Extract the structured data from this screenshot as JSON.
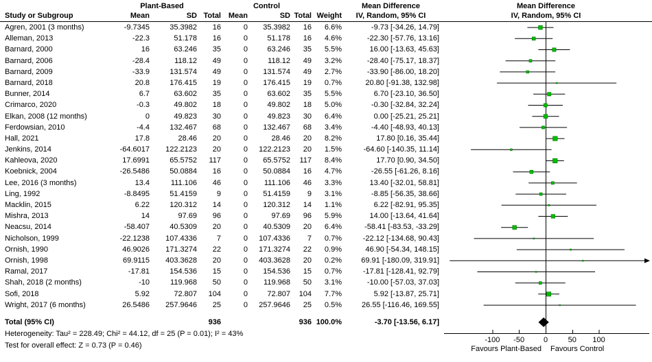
{
  "table": {
    "group_plant": "Plant-Based",
    "group_control": "Control",
    "md_header_text": "Mean Difference",
    "md_header_plot": "Mean Difference",
    "columns": [
      "Study or Subgroup",
      "Mean",
      "SD",
      "Total",
      "Mean",
      "SD",
      "Total",
      "Weight",
      "IV, Random, 95% CI"
    ],
    "plot_subheader": "IV, Random, 95% CI"
  },
  "chart_data": {
    "type": "forest",
    "effect_measure": "Mean Difference, IV, Random, 95% CI",
    "axis": {
      "ticks": [
        -100,
        -50,
        0,
        50,
        100
      ],
      "display_range": [
        -185,
        195
      ],
      "zero_line": 0
    },
    "favours_left": "Favours Plant-Based",
    "favours_right": "Favours Control",
    "marker_color": "#00bd00",
    "marker_border": "#006600",
    "line_color": "#000000",
    "diamond_color": "#000000",
    "studies": [
      {
        "name": "Agren, 2001 (3 months)",
        "pb_mean": "-9.7345",
        "pb_sd": "35.3982",
        "pb_total": "16",
        "c_mean": "0",
        "c_sd": "35.3982",
        "c_total": "16",
        "weight": "6.6%",
        "ci": "-9.73 [-34.26, 14.79]",
        "md": -9.73,
        "lo": -34.26,
        "hi": 14.79
      },
      {
        "name": "Alleman, 2013",
        "pb_mean": "-22.3",
        "pb_sd": "51.178",
        "pb_total": "16",
        "c_mean": "0",
        "c_sd": "51.178",
        "c_total": "16",
        "weight": "4.6%",
        "ci": "-22.30 [-57.76, 13.16]",
        "md": -22.3,
        "lo": -57.76,
        "hi": 13.16
      },
      {
        "name": "Barnard, 2000",
        "pb_mean": "16",
        "pb_sd": "63.246",
        "pb_total": "35",
        "c_mean": "0",
        "c_sd": "63.246",
        "c_total": "35",
        "weight": "5.5%",
        "ci": "16.00 [-13.63, 45.63]",
        "md": 16,
        "lo": -13.63,
        "hi": 45.63
      },
      {
        "name": "Barnard, 2006",
        "pb_mean": "-28.4",
        "pb_sd": "118.12",
        "pb_total": "49",
        "c_mean": "0",
        "c_sd": "118.12",
        "c_total": "49",
        "weight": "3.2%",
        "ci": "-28.40 [-75.17, 18.37]",
        "md": -28.4,
        "lo": -75.17,
        "hi": 18.37
      },
      {
        "name": "Barnard, 2009",
        "pb_mean": "-33.9",
        "pb_sd": "131.574",
        "pb_total": "49",
        "c_mean": "0",
        "c_sd": "131.574",
        "c_total": "49",
        "weight": "2.7%",
        "ci": "-33.90 [-86.00, 18.20]",
        "md": -33.9,
        "lo": -86.0,
        "hi": 18.2
      },
      {
        "name": "Barnard, 2018",
        "pb_mean": "20.8",
        "pb_sd": "176.415",
        "pb_total": "19",
        "c_mean": "0",
        "c_sd": "176.415",
        "c_total": "19",
        "weight": "0.7%",
        "ci": "20.80 [-91.38, 132.98]",
        "md": 20.8,
        "lo": -91.38,
        "hi": 132.98
      },
      {
        "name": "Bunner, 2014",
        "pb_mean": "6.7",
        "pb_sd": "63.602",
        "pb_total": "35",
        "c_mean": "0",
        "c_sd": "63.602",
        "c_total": "35",
        "weight": "5.5%",
        "ci": "6.70 [-23.10, 36.50]",
        "md": 6.7,
        "lo": -23.1,
        "hi": 36.5
      },
      {
        "name": "Crimarco, 2020",
        "pb_mean": "-0.3",
        "pb_sd": "49.802",
        "pb_total": "18",
        "c_mean": "0",
        "c_sd": "49.802",
        "c_total": "18",
        "weight": "5.0%",
        "ci": "-0.30 [-32.84, 32.24]",
        "md": -0.3,
        "lo": -32.84,
        "hi": 32.24
      },
      {
        "name": "Elkan, 2008 (12 months)",
        "pb_mean": "0",
        "pb_sd": "49.823",
        "pb_total": "30",
        "c_mean": "0",
        "c_sd": "49.823",
        "c_total": "30",
        "weight": "6.4%",
        "ci": "0.00 [-25.21, 25.21]",
        "md": 0,
        "lo": -25.21,
        "hi": 25.21
      },
      {
        "name": "Ferdowsian, 2010",
        "pb_mean": "-4.4",
        "pb_sd": "132.467",
        "pb_total": "68",
        "c_mean": "0",
        "c_sd": "132.467",
        "c_total": "68",
        "weight": "3.4%",
        "ci": "-4.40 [-48.93, 40.13]",
        "md": -4.4,
        "lo": -48.93,
        "hi": 40.13
      },
      {
        "name": "Hall, 2021",
        "pb_mean": "17.8",
        "pb_sd": "28.46",
        "pb_total": "20",
        "c_mean": "0",
        "c_sd": "28.46",
        "c_total": "20",
        "weight": "8.2%",
        "ci": "17.80 [0.16, 35.44]",
        "md": 17.8,
        "lo": 0.16,
        "hi": 35.44
      },
      {
        "name": "Jenkins, 2014",
        "pb_mean": "-64.6017",
        "pb_sd": "122.2123",
        "pb_total": "20",
        "c_mean": "0",
        "c_sd": "122.2123",
        "c_total": "20",
        "weight": "1.5%",
        "ci": "-64.60 [-140.35, 11.14]",
        "md": -64.6,
        "lo": -140.35,
        "hi": 11.14
      },
      {
        "name": "Kahleova, 2020",
        "pb_mean": "17.6991",
        "pb_sd": "65.5752",
        "pb_total": "117",
        "c_mean": "0",
        "c_sd": "65.5752",
        "c_total": "117",
        "weight": "8.4%",
        "ci": "17.70 [0.90, 34.50]",
        "md": 17.7,
        "lo": 0.9,
        "hi": 34.5
      },
      {
        "name": "Koebnick, 2004",
        "pb_mean": "-26.5486",
        "pb_sd": "50.0884",
        "pb_total": "16",
        "c_mean": "0",
        "c_sd": "50.0884",
        "c_total": "16",
        "weight": "4.7%",
        "ci": "-26.55 [-61.26, 8.16]",
        "md": -26.55,
        "lo": -61.26,
        "hi": 8.16
      },
      {
        "name": "Lee, 2016 (3 months)",
        "pb_mean": "13.4",
        "pb_sd": "111.106",
        "pb_total": "46",
        "c_mean": "0",
        "c_sd": "111.106",
        "c_total": "46",
        "weight": "3.3%",
        "ci": "13.40 [-32.01, 58.81]",
        "md": 13.4,
        "lo": -32.01,
        "hi": 58.81
      },
      {
        "name": "Ling, 1992",
        "pb_mean": "-8.8495",
        "pb_sd": "51.4159",
        "pb_total": "9",
        "c_mean": "0",
        "c_sd": "51.4159",
        "c_total": "9",
        "weight": "3.1%",
        "ci": "-8.85 [-56.35, 38.66]",
        "md": -8.85,
        "lo": -56.35,
        "hi": 38.66
      },
      {
        "name": "Macklin, 2015",
        "pb_mean": "6.22",
        "pb_sd": "120.312",
        "pb_total": "14",
        "c_mean": "0",
        "c_sd": "120.312",
        "c_total": "14",
        "weight": "1.1%",
        "ci": "6.22 [-82.91, 95.35]",
        "md": 6.22,
        "lo": -82.91,
        "hi": 95.35
      },
      {
        "name": "Mishra, 2013",
        "pb_mean": "14",
        "pb_sd": "97.69",
        "pb_total": "96",
        "c_mean": "0",
        "c_sd": "97.69",
        "c_total": "96",
        "weight": "5.9%",
        "ci": "14.00 [-13.64, 41.64]",
        "md": 14,
        "lo": -13.64,
        "hi": 41.64
      },
      {
        "name": "Neacsu, 2014",
        "pb_mean": "-58.407",
        "pb_sd": "40.5309",
        "pb_total": "20",
        "c_mean": "0",
        "c_sd": "40.5309",
        "c_total": "20",
        "weight": "6.4%",
        "ci": "-58.41 [-83.53, -33.29]",
        "md": -58.41,
        "lo": -83.53,
        "hi": -33.29
      },
      {
        "name": "Nicholson, 1999",
        "pb_mean": "-22.1238",
        "pb_sd": "107.4336",
        "pb_total": "7",
        "c_mean": "0",
        "c_sd": "107.4336",
        "c_total": "7",
        "weight": "0.7%",
        "ci": "-22.12 [-134.68, 90.43]",
        "md": -22.12,
        "lo": -134.68,
        "hi": 90.43
      },
      {
        "name": "Ornish, 1990",
        "pb_mean": "46.9026",
        "pb_sd": "171.3274",
        "pb_total": "22",
        "c_mean": "0",
        "c_sd": "171.3274",
        "c_total": "22",
        "weight": "0.9%",
        "ci": "46.90 [-54.34, 148.15]",
        "md": 46.9,
        "lo": -54.34,
        "hi": 148.15
      },
      {
        "name": "Ornish, 1998",
        "pb_mean": "69.9115",
        "pb_sd": "403.3628",
        "pb_total": "20",
        "c_mean": "0",
        "c_sd": "403.3628",
        "c_total": "20",
        "weight": "0.2%",
        "ci": "69.91 [-180.09, 319.91]",
        "md": 69.91,
        "lo": -180.09,
        "hi": 319.91
      },
      {
        "name": "Ramal, 2017",
        "pb_mean": "-17.81",
        "pb_sd": "154.536",
        "pb_total": "15",
        "c_mean": "0",
        "c_sd": "154.536",
        "c_total": "15",
        "weight": "0.7%",
        "ci": "-17.81 [-128.41, 92.79]",
        "md": -17.81,
        "lo": -128.41,
        "hi": 92.79
      },
      {
        "name": "Shah, 2018 (2 months)",
        "pb_mean": "-10",
        "pb_sd": "119.968",
        "pb_total": "50",
        "c_mean": "0",
        "c_sd": "119.968",
        "c_total": "50",
        "weight": "3.1%",
        "ci": "-10.00 [-57.03, 37.03]",
        "md": -10,
        "lo": -57.03,
        "hi": 37.03
      },
      {
        "name": "Sofi, 2018",
        "pb_mean": "5.92",
        "pb_sd": "72.807",
        "pb_total": "104",
        "c_mean": "0",
        "c_sd": "72.807",
        "c_total": "104",
        "weight": "7.7%",
        "ci": "5.92 [-13.87, 25.71]",
        "md": 5.92,
        "lo": -13.87,
        "hi": 25.71
      },
      {
        "name": "Wright, 2017 (6 months)",
        "pb_mean": "26.5486",
        "pb_sd": "257.9646",
        "pb_total": "25",
        "c_mean": "0",
        "c_sd": "257.9646",
        "c_total": "25",
        "weight": "0.5%",
        "ci": "26.55 [-116.46, 169.55]",
        "md": 26.55,
        "lo": -116.46,
        "hi": 169.55
      }
    ],
    "total": {
      "label": "Total (95% CI)",
      "pb_total": "936",
      "c_total": "936",
      "weight": "100.0%",
      "ci": "-3.70 [-13.56, 6.17]",
      "md": -3.7,
      "lo": -13.56,
      "hi": 6.17
    },
    "heterogeneity": "Heterogeneity: Tau² = 228.49; Chi² = 44.12, df = 25 (P = 0.01); I² = 43%",
    "overall_effect": "Test for overall effect: Z = 0.73 (P = 0.46)"
  }
}
